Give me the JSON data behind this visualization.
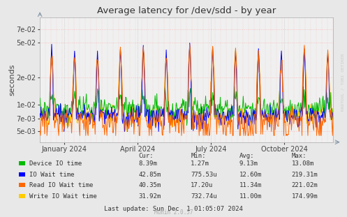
{
  "title": "Average latency for /dev/sdd - by year",
  "ylabel": "seconds",
  "background_color": "#e8e8e8",
  "plot_bg_color": "#f0f0f0",
  "yticks": [
    0.005,
    0.007,
    0.01,
    0.02,
    0.05,
    0.07
  ],
  "ytick_labels": [
    "5e-03",
    "7e-03",
    "1e-02",
    "2e-02",
    "5e-02",
    "7e-02"
  ],
  "ylim_low": 0.0038,
  "ylim_high": 0.095,
  "xtick_positions": [
    0.083,
    0.333,
    0.583,
    0.833
  ],
  "xtick_labels": [
    "January 2024",
    "April 2024",
    "July 2024",
    "October 2024"
  ],
  "legend": [
    {
      "label": "Device IO time",
      "color": "#00bb00"
    },
    {
      "label": "IO Wait time",
      "color": "#0000ff"
    },
    {
      "label": "Read IO Wait time",
      "color": "#ff6600"
    },
    {
      "label": "Write IO Wait time",
      "color": "#ffcc00"
    }
  ],
  "table_headers": [
    "Cur:",
    "Min:",
    "Avg:",
    "Max:"
  ],
  "table_rows": [
    [
      "8.39m",
      "1.27m",
      "9.13m",
      "13.08m"
    ],
    [
      "42.85m",
      "775.53u",
      "12.60m",
      "219.31m"
    ],
    [
      "40.35m",
      "17.20u",
      "11.34m",
      "221.02m"
    ],
    [
      "31.92m",
      "732.74u",
      "11.00m",
      "174.99m"
    ]
  ],
  "footer": "Last update: Sun Dec  1 01:05:07 2024",
  "munin_version": "Munin 2.0.57",
  "rrdtool_label": "RRDTOOL / TOBI OETIKER",
  "num_points": 500
}
